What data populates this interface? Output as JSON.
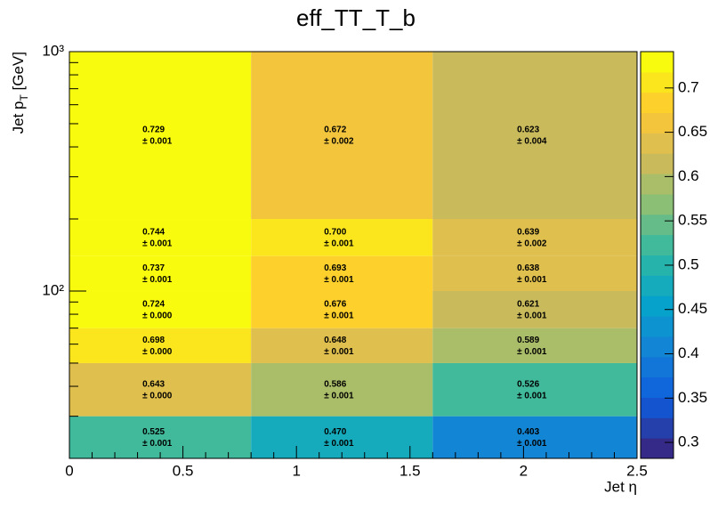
{
  "chart_data": {
    "type": "heatmap",
    "title": "eff_TT_T_b",
    "xlabel": "Jet η",
    "ylabel": {
      "main": "Jet p",
      "sub": "T",
      "rest": " [GeV]"
    },
    "xbins": [
      0,
      0.8,
      1.6,
      2.5
    ],
    "ybins": [
      20,
      30,
      50,
      70,
      100,
      140,
      200,
      1000
    ],
    "xlim": [
      0,
      2.5
    ],
    "xticks": [
      0,
      0.5,
      1,
      1.5,
      2,
      2.5
    ],
    "xminor": [
      0.1,
      0.2,
      0.3,
      0.4,
      0.6,
      0.7,
      0.8,
      0.9,
      1.1,
      1.2,
      1.3,
      1.4,
      1.6,
      1.7,
      1.8,
      1.9,
      2.1,
      2.2,
      2.3,
      2.4
    ],
    "ylim": [
      20,
      1000
    ],
    "ylog": true,
    "yticks": [
      {
        "value": 100,
        "label": "10²"
      },
      {
        "value": 1000,
        "label": "10³"
      }
    ],
    "yminor": [
      30,
      40,
      50,
      60,
      70,
      80,
      90,
      200,
      300,
      400,
      500,
      600,
      700,
      800,
      900
    ],
    "values": [
      [
        0.525,
        0.47,
        0.403
      ],
      [
        0.643,
        0.586,
        0.526
      ],
      [
        0.698,
        0.648,
        0.589
      ],
      [
        0.724,
        0.676,
        0.621
      ],
      [
        0.737,
        0.693,
        0.638
      ],
      [
        0.744,
        0.7,
        0.639
      ],
      [
        0.729,
        0.672,
        0.623
      ]
    ],
    "value_labels": [
      [
        "0.525",
        "0.470",
        "0.403"
      ],
      [
        "0.643",
        "0.586",
        "0.526"
      ],
      [
        "0.698",
        "0.648",
        "0.589"
      ],
      [
        "0.724",
        "0.676",
        "0.621"
      ],
      [
        "0.737",
        "0.693",
        "0.638"
      ],
      [
        "0.744",
        "0.700",
        "0.639"
      ],
      [
        "0.729",
        "0.672",
        "0.623"
      ]
    ],
    "error_labels": [
      [
        "± 0.001",
        "± 0.001",
        "± 0.001"
      ],
      [
        "± 0.000",
        "± 0.001",
        "± 0.001"
      ],
      [
        "± 0.000",
        "± 0.001",
        "± 0.001"
      ],
      [
        "± 0.000",
        "± 0.001",
        "± 0.001"
      ],
      [
        "± 0.001",
        "± 0.001",
        "± 0.001"
      ],
      [
        "± 0.001",
        "± 0.001",
        "± 0.002"
      ],
      [
        "± 0.001",
        "± 0.002",
        "± 0.004"
      ]
    ],
    "zlim": [
      0.282,
      0.741
    ],
    "zticks": [
      0.3,
      0.35,
      0.4,
      0.45,
      0.5,
      0.55,
      0.6,
      0.65,
      0.7
    ],
    "contours": 20,
    "palette": [
      "#352a87",
      "#0f5cdd",
      "#1481d6",
      "#06a4ca",
      "#2eb7a4",
      "#87bf77",
      "#d1bb59",
      "#fec832",
      "#f9fb0e"
    ]
  }
}
